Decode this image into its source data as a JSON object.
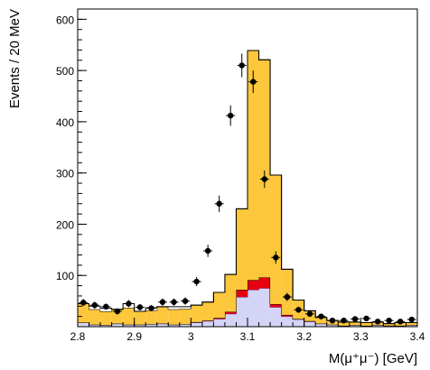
{
  "chart_data": {
    "type": "bar",
    "style": "stacked-histogram-with-data-points",
    "xlabel": "M(μ⁺μ⁻) [GeV]",
    "ylabel": "Events / 20 MeV",
    "xlim": [
      2.8,
      3.4
    ],
    "ylim": [
      0,
      620
    ],
    "x_ticks": [
      2.8,
      2.9,
      3.0,
      3.1,
      3.2,
      3.3,
      3.4
    ],
    "x_tick_labels": [
      "2.8",
      "2.9",
      "3",
      "3.1",
      "3.2",
      "3.3",
      "3.4"
    ],
    "y_ticks": [
      100,
      200,
      300,
      400,
      500,
      600
    ],
    "y_tick_labels": [
      "100",
      "200",
      "300",
      "400",
      "500",
      "600"
    ],
    "grid": false,
    "legend": "none",
    "bin_edges": [
      2.8,
      2.82,
      2.84,
      2.86,
      2.88,
      2.9,
      2.92,
      2.94,
      2.96,
      2.98,
      3.0,
      3.02,
      3.04,
      3.06,
      3.08,
      3.1,
      3.12,
      3.14,
      3.16,
      3.18,
      3.2,
      3.22,
      3.24,
      3.26,
      3.28,
      3.3,
      3.32,
      3.34,
      3.36,
      3.38,
      3.4
    ],
    "series": [
      {
        "color": "#d4d4f7",
        "edge": "#6a4ba8",
        "values": [
          8,
          4,
          3,
          6,
          4,
          4,
          5,
          6,
          4,
          5,
          8,
          11,
          15,
          25,
          58,
          72,
          75,
          38,
          20,
          14,
          10,
          6,
          4,
          2,
          3,
          2,
          3,
          2,
          2,
          3
        ]
      },
      {
        "color": "#e8000e",
        "edge": "#000000",
        "values": [
          0,
          0,
          0,
          0,
          0,
          0,
          0,
          0,
          0,
          0,
          1,
          1,
          2,
          4,
          14,
          19,
          21,
          6,
          3,
          1,
          1,
          0,
          0,
          0,
          0,
          0,
          0,
          0,
          0,
          0
        ]
      },
      {
        "color": "#fcc73b",
        "edge": "#000000",
        "values": [
          37,
          30,
          27,
          28,
          33,
          26,
          27,
          33,
          30,
          30,
          33,
          36,
          50,
          73,
          158,
          448,
          425,
          252,
          89,
          37,
          20,
          12,
          8,
          7,
          6,
          6,
          6,
          4,
          6,
          5
        ]
      },
      {
        "color": "#ffffff",
        "edge": "#000000",
        "values": [
          0,
          6,
          6,
          0,
          8,
          0,
          5,
          0,
          5,
          4,
          0,
          0,
          0,
          0,
          0,
          0,
          0,
          0,
          0,
          0,
          0,
          0,
          0,
          0,
          0,
          0,
          0,
          0,
          0,
          0
        ]
      }
    ],
    "data_points": {
      "x": [
        2.81,
        2.83,
        2.85,
        2.87,
        2.89,
        2.91,
        2.93,
        2.95,
        2.97,
        2.99,
        3.01,
        3.03,
        3.05,
        3.07,
        3.09,
        3.11,
        3.13,
        3.15,
        3.17,
        3.19,
        3.21,
        3.23,
        3.25,
        3.27,
        3.29,
        3.31,
        3.33,
        3.35,
        3.37,
        3.39
      ],
      "y": [
        47,
        42,
        39,
        30,
        45,
        38,
        36,
        48,
        48,
        50,
        88,
        148,
        240,
        412,
        510,
        478,
        288,
        135,
        58,
        33,
        25,
        20,
        12,
        12,
        15,
        16,
        10,
        12,
        10,
        14
      ],
      "yerr": [
        7,
        7,
        6,
        6,
        7,
        6,
        6,
        7,
        7,
        7,
        9,
        12,
        16,
        20,
        23,
        22,
        17,
        12,
        8,
        6,
        5,
        5,
        4,
        4,
        4,
        4,
        3,
        4,
        3,
        4
      ]
    }
  }
}
